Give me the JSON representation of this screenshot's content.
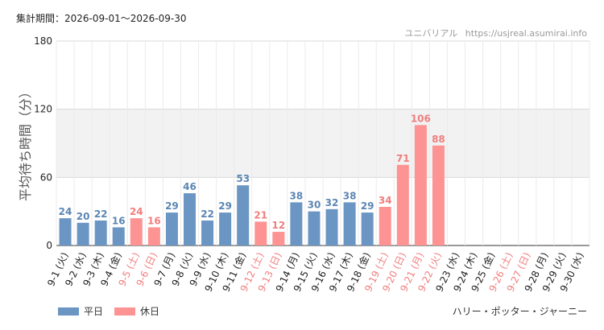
{
  "period_text": "集計期間：2026-09-01～2026-09-30",
  "credit": {
    "site": "ユニバリアル",
    "url": "https://usjreal.asumirai.info"
  },
  "attraction": "ハリー・ポッター・ジャーニー",
  "legend": [
    {
      "label": "平日",
      "color": "#6b96c3"
    },
    {
      "label": "休日",
      "color": "#fd9393"
    }
  ],
  "chart_data": {
    "type": "bar",
    "ylabel": "平均待ち時間（分）",
    "ylim": [
      0,
      180
    ],
    "yticks": [
      "0",
      "60",
      "120",
      "180"
    ],
    "yticks_values": [
      0,
      60,
      120,
      180
    ],
    "band": [
      60,
      120
    ],
    "grid": true,
    "colors": {
      "weekday": "#6b96c3",
      "holiday": "#fd9393",
      "weekday_text": "#5b86b3",
      "holiday_text": "#f07e7e"
    },
    "categories": [
      "9-1 (火)",
      "9-2 (水)",
      "9-3 (木)",
      "9-4 (金)",
      "9-5 (土)",
      "9-6 (日)",
      "9-7 (月)",
      "9-8 (火)",
      "9-9 (水)",
      "9-10 (木)",
      "9-11 (金)",
      "9-12 (土)",
      "9-13 (日)",
      "9-14 (月)",
      "9-15 (火)",
      "9-16 (水)",
      "9-17 (木)",
      "9-18 (金)",
      "9-19 (土)",
      "9-20 (日)",
      "9-21 (月)",
      "9-22 (火)",
      "9-23 (水)",
      "9-24 (木)",
      "9-25 (金)",
      "9-26 (土)",
      "9-27 (日)",
      "9-28 (月)",
      "9-29 (火)",
      "9-30 (水)"
    ],
    "values": [
      24,
      20,
      22,
      16,
      24,
      16,
      29,
      46,
      22,
      29,
      53,
      21,
      12,
      38,
      30,
      32,
      38,
      29,
      34,
      71,
      106,
      88,
      null,
      null,
      null,
      null,
      null,
      null,
      null,
      null
    ],
    "day_type": [
      "weekday",
      "weekday",
      "weekday",
      "weekday",
      "holiday",
      "holiday",
      "weekday",
      "weekday",
      "weekday",
      "weekday",
      "weekday",
      "holiday",
      "holiday",
      "weekday",
      "weekday",
      "weekday",
      "weekday",
      "weekday",
      "holiday",
      "holiday",
      "holiday",
      "holiday",
      "weekday",
      "weekday",
      "weekday",
      "holiday",
      "holiday",
      "weekday",
      "weekday",
      "weekday"
    ]
  }
}
